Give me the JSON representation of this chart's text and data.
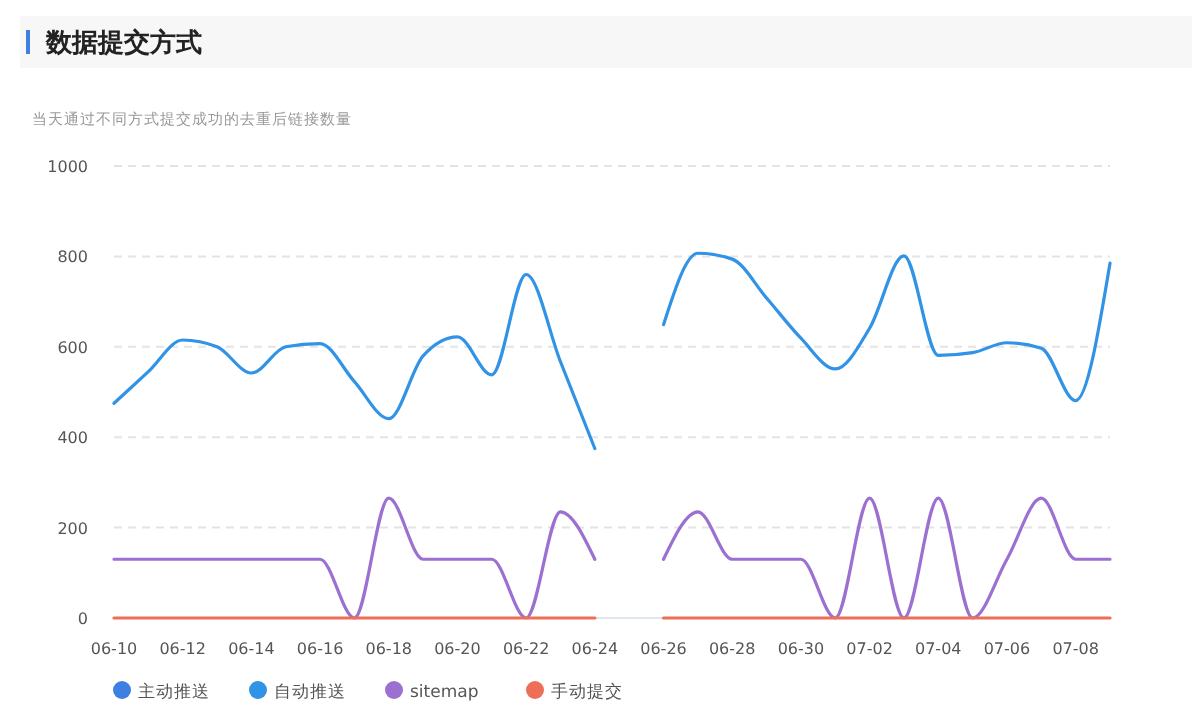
{
  "chart_data": {
    "type": "line",
    "title": "数据提交方式",
    "subtitle": "当天通过不同方式提交成功的去重后链接数量",
    "categories": [
      "06-10",
      null,
      "06-12",
      null,
      "06-14",
      null,
      "06-16",
      null,
      "06-18",
      null,
      "06-20",
      null,
      "06-22",
      null,
      "06-24",
      null,
      "06-26",
      null,
      "06-28",
      null,
      "06-30",
      null,
      "07-02",
      null,
      "07-04",
      null,
      "07-06",
      null,
      "07-08",
      null
    ],
    "series": [
      {
        "name": "主动推送",
        "color": "#3d7fe3",
        "values": [
          null,
          null,
          null,
          null,
          null,
          null,
          null,
          null,
          null,
          null,
          null,
          null,
          null,
          null,
          null,
          null,
          null,
          null,
          null,
          null,
          null,
          null,
          null,
          null,
          null,
          null,
          null,
          null,
          null,
          null
        ]
      },
      {
        "name": "自动推送",
        "color": "#3193e6",
        "values": [
          475,
          545,
          615,
          600,
          542,
          600,
          607,
          523,
          441,
          580,
          622,
          538,
          760,
          567,
          375,
          null,
          649,
          807,
          794,
          708,
          619,
          551,
          641,
          801,
          581,
          587,
          609,
          597,
          481,
          785
        ]
      },
      {
        "name": "sitemap",
        "color": "#9b70d1",
        "values": [
          130,
          130,
          130,
          130,
          130,
          130,
          130,
          0,
          265,
          130,
          130,
          130,
          0,
          235,
          130,
          null,
          130,
          235,
          130,
          130,
          130,
          0,
          265,
          0,
          265,
          0,
          130,
          265,
          130,
          130
        ]
      },
      {
        "name": "手动提交",
        "color": "#ee6f57",
        "values": [
          0,
          0,
          0,
          0,
          0,
          0,
          0,
          0,
          0,
          0,
          0,
          0,
          0,
          0,
          0,
          null,
          0,
          0,
          0,
          0,
          0,
          0,
          0,
          0,
          0,
          0,
          0,
          0,
          0,
          0
        ]
      }
    ],
    "ylim": [
      0,
      1000
    ],
    "yticks": [
      0,
      200,
      400,
      600,
      800,
      1000
    ],
    "grid": "y",
    "legend": "bottom"
  }
}
